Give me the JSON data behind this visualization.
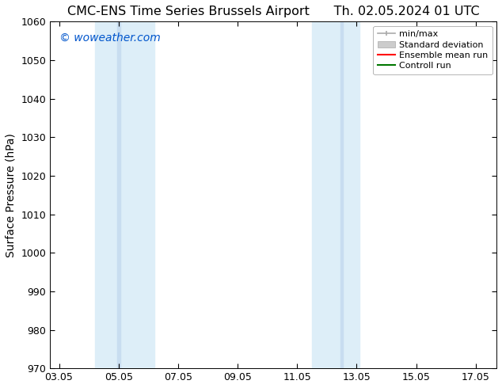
{
  "title_left": "CMC-ENS Time Series Brussels Airport",
  "title_right": "Th. 02.05.2024 01 UTC",
  "ylabel": "Surface Pressure (hPa)",
  "watermark": "© woweather.com",
  "watermark_color": "#0055cc",
  "ylim": [
    970,
    1060
  ],
  "yticks": [
    970,
    980,
    990,
    1000,
    1010,
    1020,
    1030,
    1040,
    1050,
    1060
  ],
  "xtick_labels": [
    "03.05",
    "05.05",
    "07.05",
    "09.05",
    "11.05",
    "13.05",
    "15.05",
    "17.05"
  ],
  "xtick_values": [
    0,
    2,
    4,
    6,
    8,
    10,
    12,
    14
  ],
  "xmin": -0.3,
  "xmax": 14.7,
  "shaded_bands": [
    {
      "x_start": 1.2,
      "x_end": 2.0,
      "color": "#deeef8"
    },
    {
      "x_start": 2.0,
      "x_end": 3.2,
      "color": "#deeef8"
    },
    {
      "x_start": 8.5,
      "x_end": 9.3,
      "color": "#deeef8"
    },
    {
      "x_start": 9.3,
      "x_end": 10.1,
      "color": "#deeef8"
    }
  ],
  "background_color": "#ffffff",
  "legend_labels": [
    "min/max",
    "Standard deviation",
    "Ensemble mean run",
    "Controll run"
  ],
  "legend_colors": [
    "#aaaaaa",
    "#cccccc",
    "#ff0000",
    "#007700"
  ],
  "title_fontsize": 11.5,
  "tick_fontsize": 9,
  "ylabel_fontsize": 10,
  "watermark_fontsize": 10
}
